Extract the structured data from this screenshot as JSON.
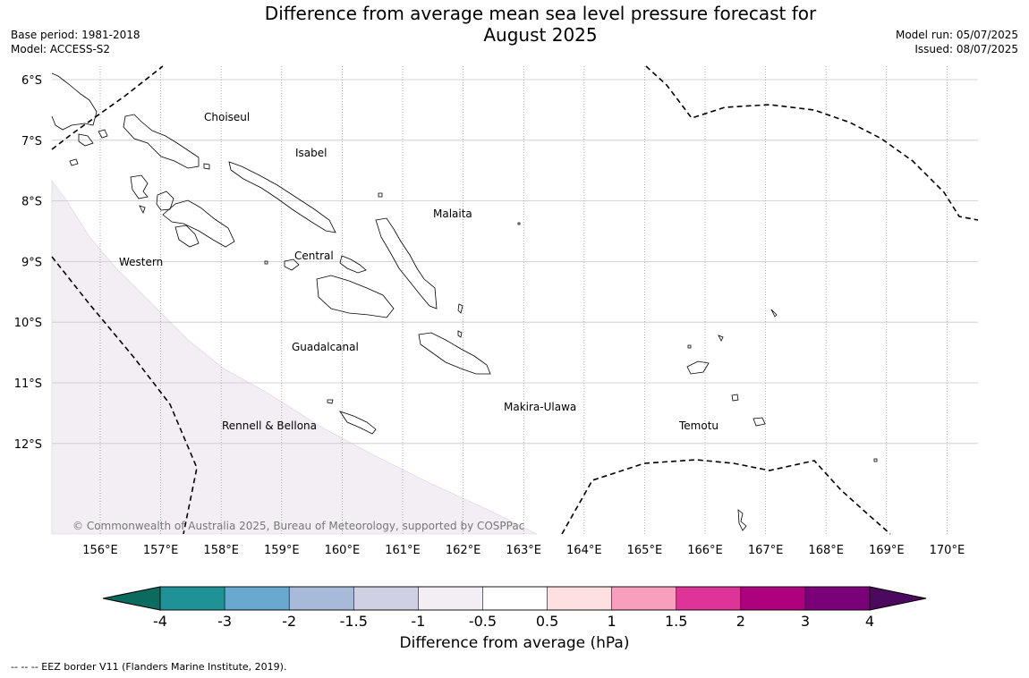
{
  "header": {
    "title_line1": "Difference from average mean sea level pressure forecast for",
    "title_line2": "August 2025",
    "base_period": "Base period: 1981-2018",
    "model": "Model: ACCESS-S2",
    "model_run": "Model run: 05/07/2025",
    "issued": "Issued: 08/07/2025"
  },
  "map": {
    "copyright": "© Commonwealth of Australia 2025, Bureau of Meteorology, supported by COSPPac",
    "lat_ticks": [
      "6°S",
      "7°S",
      "8°S",
      "9°S",
      "10°S",
      "11°S",
      "12°S"
    ],
    "lon_ticks": [
      "156°E",
      "157°E",
      "158°E",
      "159°E",
      "160°E",
      "161°E",
      "162°E",
      "163°E",
      "164°E",
      "165°E",
      "166°E",
      "167°E",
      "168°E",
      "169°E",
      "170°E"
    ],
    "regions": [
      "Choiseul",
      "Isabel",
      "Malaita",
      "Western",
      "Central",
      "Guadalcanal",
      "Makira-Ulawa",
      "Rennell & Bellona",
      "Temotu"
    ],
    "shaded_anomaly_color": "#f3eef4",
    "shaded_anomaly_range": "-1 to -0.5",
    "eez_line_style": "dashed"
  },
  "colorbar": {
    "label": "Difference from average (hPa)",
    "ticks": [
      "-4",
      "-3",
      "-2",
      "-1.5",
      "-1",
      "-0.5",
      "0.5",
      "1",
      "1.5",
      "2",
      "3",
      "4"
    ],
    "low_extend_color": "#0b6b5e",
    "high_extend_color": "#4b0a5e",
    "bins": [
      {
        "color": "#1f9296"
      },
      {
        "color": "#6aa9cf"
      },
      {
        "color": "#a7bad9"
      },
      {
        "color": "#cfd0e4"
      },
      {
        "color": "#f3eef4"
      },
      {
        "color": "#ffffff"
      },
      {
        "color": "#fde0df"
      },
      {
        "color": "#f89fbd"
      },
      {
        "color": "#dd3497"
      },
      {
        "color": "#ae017e"
      },
      {
        "color": "#7a0177"
      }
    ]
  },
  "footnote": "--  --  -- EEZ border V11 (Flanders Marine Institute, 2019)."
}
